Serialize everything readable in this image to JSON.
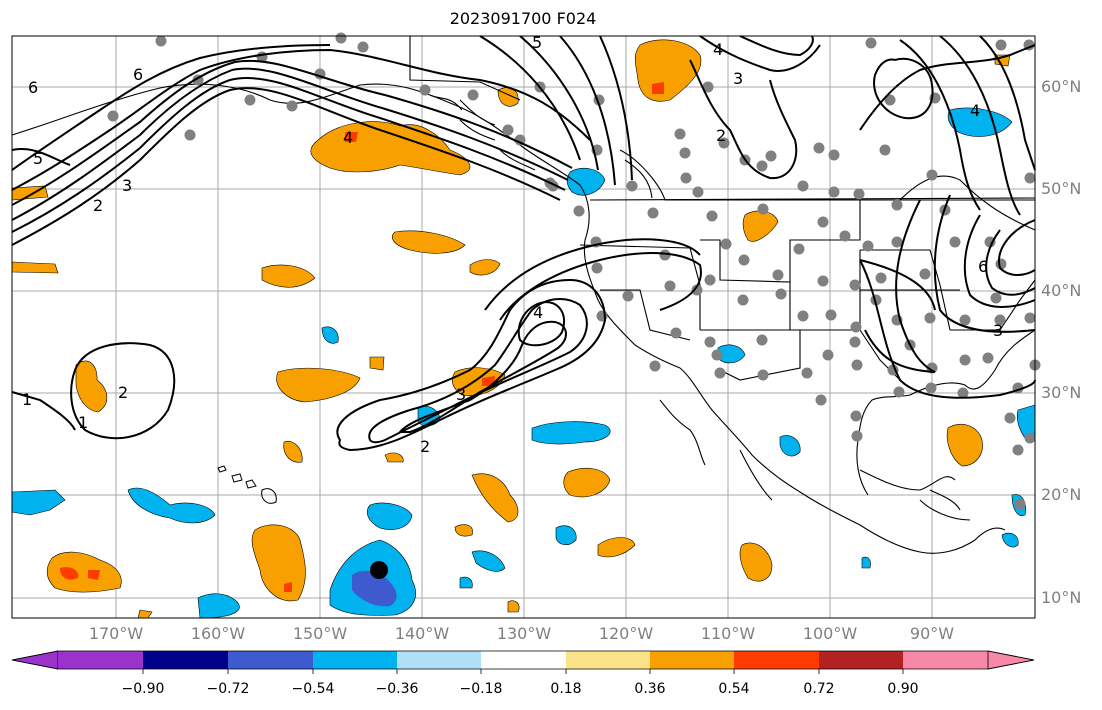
{
  "title": "2023091700 F024",
  "lat_labels": [
    "60°N",
    "50°N",
    "40°N",
    "30°N",
    "20°N",
    "10°N"
  ],
  "lon_labels": [
    "170°W",
    "160°W",
    "150°W",
    "140°W",
    "130°W",
    "120°W",
    "110°W",
    "100°W",
    "90°W"
  ],
  "contour_labels": [
    "6",
    "6",
    "5",
    "4",
    "3",
    "2",
    "1",
    "2",
    "1",
    "4",
    "3",
    "2",
    "5",
    "4",
    "3",
    "2",
    "6",
    "3",
    "4"
  ],
  "colorbar": {
    "tick_labels": [
      "−0.90",
      "−0.72",
      "−0.54",
      "−0.36",
      "−0.18",
      "0.18",
      "0.36",
      "0.54",
      "0.72",
      "0.90"
    ],
    "colors": [
      "#9933cc",
      "#00008b",
      "#3d5acf",
      "#00b2ee",
      "#b0e0f8",
      "#ffffff",
      "#fbe38a",
      "#f7a000",
      "#ff3c00",
      "#b22222",
      "#f888a8"
    ]
  },
  "colors": {
    "positive_fill": "#f7a000",
    "positive_strong": "#ff3c00",
    "negative_fill": "#00b2ee",
    "negative_strong": "#3d5acf",
    "station_dot": "#808080",
    "grid": "#a8a8a8",
    "contour": "#000000"
  },
  "marker": "storm-center"
}
